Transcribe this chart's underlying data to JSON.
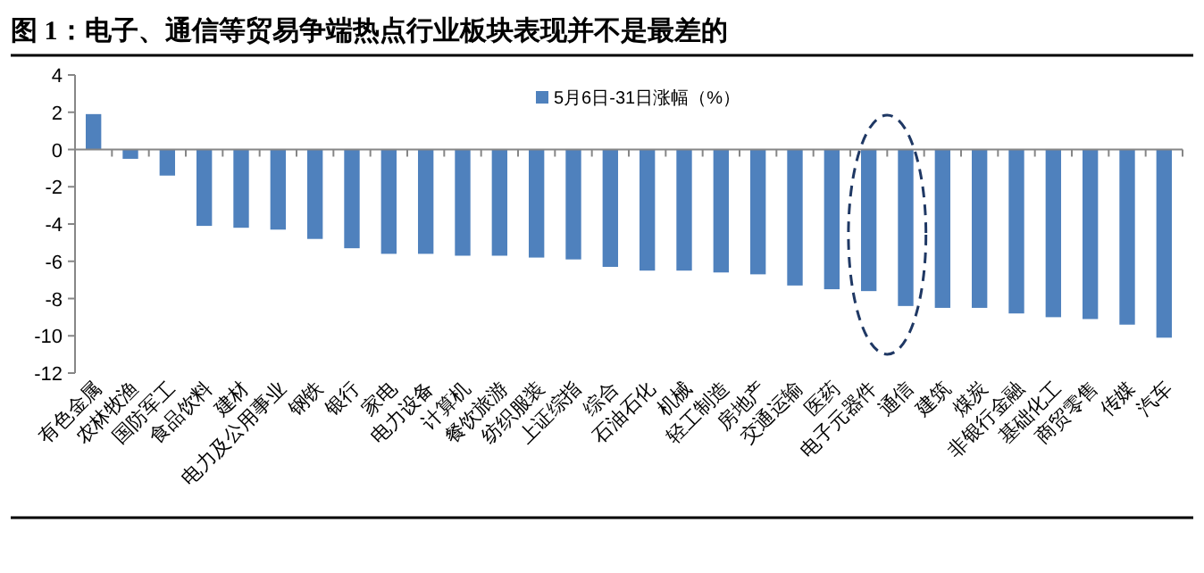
{
  "chart_data": {
    "type": "bar",
    "title": "图 1：电子、通信等贸易争端热点行业板块表现并不是最差的",
    "categories": [
      "有色金属",
      "农林牧渔",
      "国防军工",
      "食品饮料",
      "建材",
      "电力及公用事业",
      "钢铁",
      "银行",
      "家电",
      "电力设备",
      "计算机",
      "餐饮旅游",
      "纺织服装",
      "上证综指",
      "综合",
      "石油石化",
      "机械",
      "轻工制造",
      "房地产",
      "交通运输",
      "医药",
      "电子元器件",
      "通信",
      "建筑",
      "煤炭",
      "非银行金融",
      "基础化工",
      "商贸零售",
      "传媒",
      "汽车"
    ],
    "series": [
      {
        "name": "5月6日-31日涨幅（%）",
        "color": "#4f81bd",
        "values": [
          1.9,
          -0.5,
          -1.4,
          -4.1,
          -4.2,
          -4.3,
          -4.8,
          -5.3,
          -5.6,
          -5.6,
          -5.7,
          -5.7,
          -5.8,
          -5.9,
          -6.3,
          -6.5,
          -6.5,
          -6.6,
          -6.7,
          -7.3,
          -7.5,
          -7.6,
          -8.4,
          -8.5,
          -8.5,
          -8.8,
          -9.0,
          -9.1,
          -9.4,
          -10.1
        ]
      }
    ],
    "ylim": [
      -12,
      4
    ],
    "yticks": [
      -12,
      -10,
      -8,
      -6,
      -4,
      -2,
      0,
      2,
      4
    ],
    "legend": "top"
  }
}
